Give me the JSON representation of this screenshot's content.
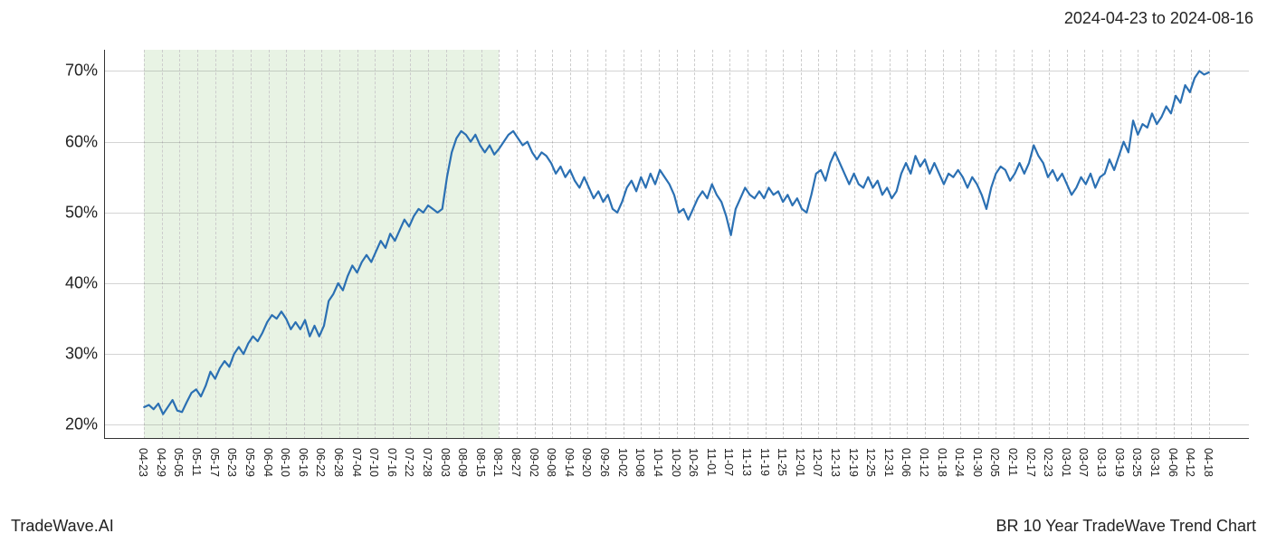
{
  "header": {
    "date_range": "2024-04-23 to 2024-08-16"
  },
  "footer": {
    "brand": "TradeWave.AI",
    "title": "BR 10 Year TradeWave Trend Chart"
  },
  "chart": {
    "type": "line",
    "background_color": "#ffffff",
    "axis_color": "#333333",
    "grid_color": "#cccccc",
    "grid_dash": "2,3",
    "line_color": "#2b70b3",
    "line_width": 2.2,
    "highlight": {
      "color": "#d6e9cd",
      "opacity": 0.55,
      "from_label": "04-23",
      "to_label": "08-16",
      "from_index": 0,
      "to_index": 20
    },
    "ylim": [
      18,
      73
    ],
    "ytick_step": 10,
    "yticks": [
      20,
      30,
      40,
      50,
      60,
      70
    ],
    "ytick_suffix": "%",
    "ytick_fontsize": 18,
    "xtick_fontsize": 12.5,
    "xtick_rotation": 90,
    "label_color": "#222222",
    "xticks": [
      "04-23",
      "04-29",
      "05-05",
      "05-11",
      "05-17",
      "05-23",
      "05-29",
      "06-04",
      "06-10",
      "06-16",
      "06-22",
      "06-28",
      "07-04",
      "07-10",
      "07-16",
      "07-22",
      "07-28",
      "08-03",
      "08-09",
      "08-15",
      "08-21",
      "08-27",
      "09-02",
      "09-08",
      "09-14",
      "09-20",
      "09-26",
      "10-02",
      "10-08",
      "10-14",
      "10-20",
      "10-26",
      "11-01",
      "11-07",
      "11-13",
      "11-19",
      "11-25",
      "12-01",
      "12-07",
      "12-13",
      "12-19",
      "12-25",
      "12-31",
      "01-06",
      "01-12",
      "01-18",
      "01-24",
      "01-30",
      "02-05",
      "02-11",
      "02-17",
      "02-23",
      "03-01",
      "03-07",
      "03-13",
      "03-19",
      "03-25",
      "03-31",
      "04-06",
      "04-12",
      "04-18"
    ],
    "series": {
      "name": "BR 10Y Trend",
      "values": [
        22.5,
        22.8,
        22.2,
        23.0,
        21.5,
        22.5,
        23.5,
        22.0,
        21.8,
        23.2,
        24.5,
        25.0,
        24.0,
        25.5,
        27.5,
        26.5,
        28.0,
        29.0,
        28.2,
        30.0,
        31.0,
        30.0,
        31.5,
        32.5,
        31.8,
        33.0,
        34.5,
        35.5,
        35.0,
        36.0,
        35.0,
        33.5,
        34.5,
        33.5,
        34.8,
        32.5,
        34.0,
        32.5,
        34.0,
        37.5,
        38.5,
        40.0,
        39.0,
        41.0,
        42.5,
        41.5,
        43.0,
        44.0,
        43.0,
        44.5,
        46.0,
        45.0,
        47.0,
        46.0,
        47.5,
        49.0,
        48.0,
        49.5,
        50.5,
        50.0,
        51.0,
        50.5,
        50.0,
        50.5,
        55.0,
        58.5,
        60.5,
        61.5,
        61.0,
        60.0,
        61.0,
        59.5,
        58.5,
        59.5,
        58.2,
        59.0,
        60.0,
        61.0,
        61.5,
        60.5,
        59.5,
        60.0,
        58.5,
        57.5,
        58.5,
        58.0,
        57.0,
        55.5,
        56.5,
        55.0,
        56.0,
        54.5,
        53.5,
        55.0,
        53.5,
        52.0,
        53.0,
        51.5,
        52.5,
        50.5,
        50.0,
        51.5,
        53.5,
        54.5,
        53.0,
        55.0,
        53.5,
        55.5,
        54.0,
        56.0,
        55.0,
        54.0,
        52.5,
        50.0,
        50.5,
        49.0,
        50.5,
        52.0,
        53.0,
        52.0,
        54.0,
        52.5,
        51.5,
        49.5,
        46.8,
        50.5,
        52.0,
        53.5,
        52.5,
        52.0,
        53.0,
        52.0,
        53.5,
        52.5,
        53.0,
        51.5,
        52.5,
        51.0,
        52.0,
        50.5,
        50.0,
        52.5,
        55.5,
        56.0,
        54.5,
        57.0,
        58.5,
        57.0,
        55.5,
        54.0,
        55.5,
        54.0,
        53.5,
        55.0,
        53.5,
        54.5,
        52.5,
        53.5,
        52.0,
        53.0,
        55.5,
        57.0,
        55.5,
        58.0,
        56.5,
        57.5,
        55.5,
        57.0,
        55.5,
        54.0,
        55.5,
        55.0,
        56.0,
        55.0,
        53.5,
        55.0,
        54.0,
        52.5,
        50.5,
        53.5,
        55.5,
        56.5,
        56.0,
        54.5,
        55.5,
        57.0,
        55.5,
        57.0,
        59.5,
        58.0,
        57.0,
        55.0,
        56.0,
        54.5,
        55.5,
        54.0,
        52.5,
        53.5,
        55.0,
        54.0,
        55.5,
        53.5,
        55.0,
        55.5,
        57.5,
        56.0,
        58.0,
        60.0,
        58.5,
        63.0,
        61.0,
        62.5,
        62.0,
        64.0,
        62.5,
        63.5,
        65.0,
        64.0,
        66.5,
        65.5,
        68.0,
        67.0,
        69.0,
        70.0,
        69.5,
        69.8
      ]
    },
    "x_point_count": 226
  }
}
